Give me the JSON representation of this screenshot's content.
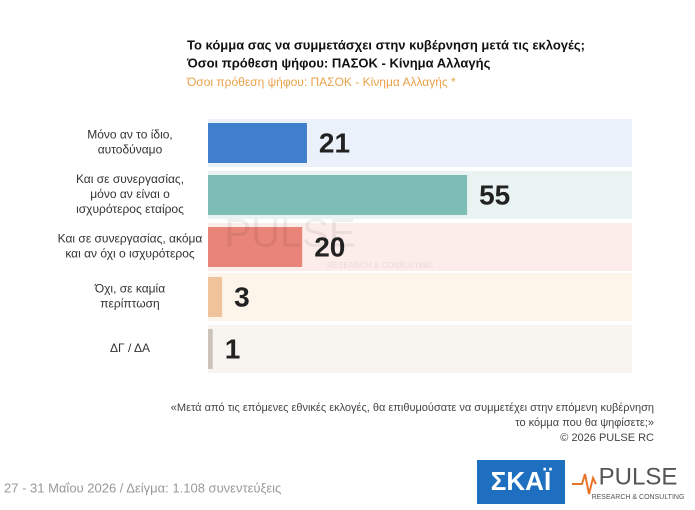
{
  "chart_data": {
    "type": "hbar",
    "title": [
      "Το κόμμα σας να συμμετάσχει στην κυβέρνηση μετά τις εκλογές;",
      "Όσοι πρόθεση ψήφου: ΠΑΣΟΚ - Κίνημα Αλλαγής"
    ],
    "subtitle": "Όσοι πρόθεση ψήφου: ΠΑΣΟΚ - Κίνημα Αλλαγής *",
    "categories": [
      [
        "Μόνο αν το ίδιο,",
        "αυτοδύναμο"
      ],
      [
        "Και σε συνεργασίας,",
        "μόνο αν είναι ο",
        "ισχυρότερος εταίρος"
      ],
      [
        "Και σε συνεργασίας, ακόμα",
        "και αν όχι ο ισχυρότερος"
      ],
      [
        "Όχι, σε καμία",
        "περίπτωση"
      ],
      [
        "ΔΓ / ΔΑ"
      ]
    ],
    "values": [
      21,
      55,
      20,
      3,
      1
    ],
    "colors": [
      "#3f7fcb",
      "#7cbdb6",
      "#e98478",
      "#efc49a",
      "#cbc2b9"
    ],
    "band_colors": [
      "#eaf1fa",
      "#e9f4f2",
      "#fcecea",
      "#fdf4ea",
      "#f8f5f1"
    ],
    "xlim": [
      0,
      90
    ],
    "question": [
      "«Μετά από τις επόμενες εθνικές εκλογές, θα επιθυμούσατε να συμμετέχει στην επόμενη κυβέρνηση",
      "το κόμμα που θα ψηφίσετε;»",
      "©  2026  PULSE RC"
    ],
    "footer": "27 - 31 Μαΐου 2026  /  Δείγμα:  1.108 συνεντεύξεις",
    "logos": [
      "ΣΚΑΪ",
      "PULSE",
      "RESEARCH & CONSULTING"
    ],
    "watermark": [
      "PULSE",
      "RESEARCH & CONSULTING"
    ]
  }
}
